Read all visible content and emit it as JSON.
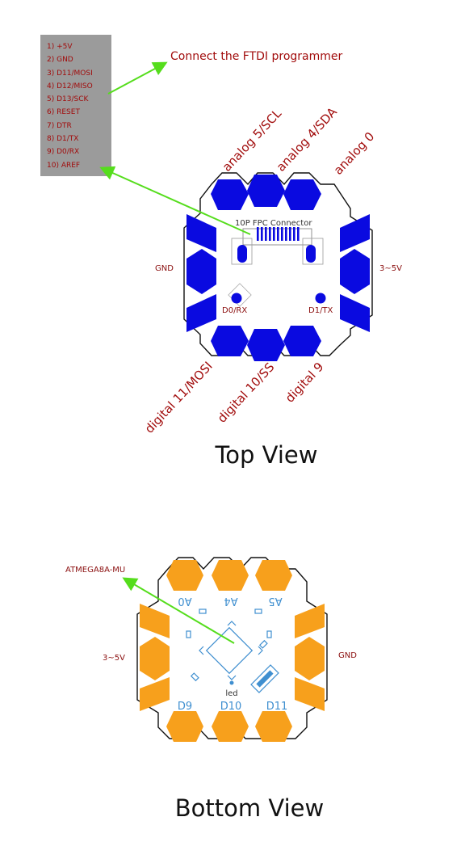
{
  "pin_list": {
    "items": [
      "1) +5V",
      "2) GND",
      "3) D11/MOSI",
      "4) D12/MISO",
      "5) D13/SCK",
      "6) RESET",
      "7) DTR",
      "8) D1/TX",
      "9) D0/RX",
      "10) AREF"
    ]
  },
  "callouts": {
    "ftdi": "Connect the  FTDI programmer",
    "atmega": "ATMEGA8A-MU"
  },
  "top_view": {
    "title": "Top View",
    "connector": "10P FPC Connector",
    "top_labels": [
      "analog 5/SCL",
      "analog 4/SDA",
      "analog 0"
    ],
    "bottom_labels": [
      "digital 11/MOSI",
      "digital 10/SS",
      "digital 9"
    ],
    "left_side": "GND",
    "right_side": "3~5V",
    "d0": "D0/RX",
    "d1": "D1/TX"
  },
  "bottom_view": {
    "title": "Bottom View",
    "top_pads": [
      "A0",
      "A4",
      "A5"
    ],
    "bottom_pads": [
      "D9",
      "D10",
      "D11"
    ],
    "left_side": "3~5V",
    "right_side": "GND",
    "led": "led"
  },
  "colors": {
    "top_pad": "#0a0ae0",
    "bottom_pad": "#f7a01c",
    "label_red": "#a10b0b",
    "arrow_green": "#55dd1c",
    "silk_blue": "#3f8fd0"
  }
}
